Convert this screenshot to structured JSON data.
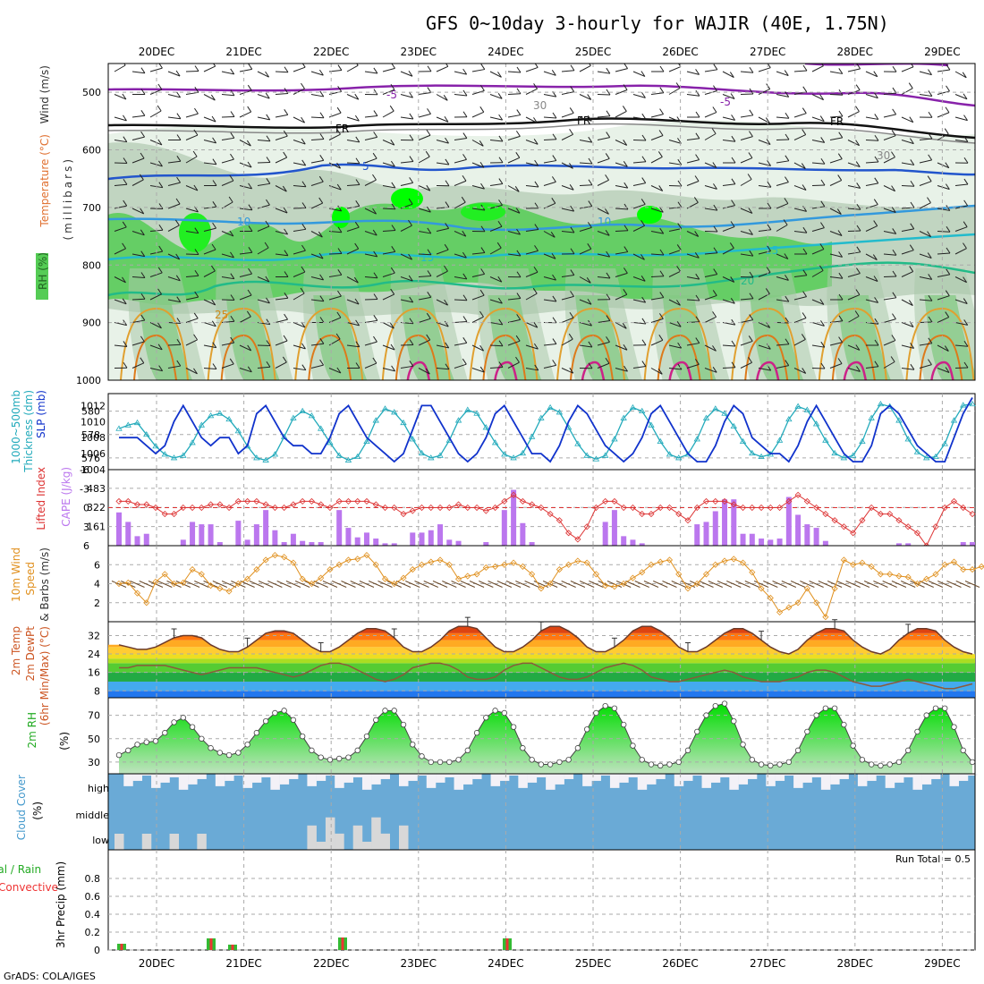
{
  "title": "GFS 0~10day 3-hourly for WAJIR (40E, 1.75N)",
  "footer": "GrADS: COLA/IGES",
  "run_total": "Run Total = 0.5",
  "dates": [
    "20DEC",
    "21DEC",
    "22DEC",
    "23DEC",
    "24DEC",
    "25DEC",
    "26DEC",
    "27DEC",
    "28DEC",
    "29DEC"
  ],
  "panel_labels": {
    "upper_wind": "Wind (m/s)",
    "upper_temp": "Temperature (°C)",
    "upper_mb": "(millibars)",
    "upper_rh": "RH (%)",
    "thick_1": "Thickness (dm)",
    "thick_2": "1000~500mb",
    "slp": "SLP (mb)",
    "li": "Lifted Index",
    "cape": "CAPE (J/kg)",
    "wind_1": "10m Wind",
    "wind_2": "Speed",
    "wind_3": "& Barbs (m/s)",
    "temp_1": "2m Temp",
    "temp_2": "2m DewPt",
    "temp_3": "(6hr Min/Max) (°C)",
    "rh": "2m RH",
    "rh_unit": "(%)",
    "cloud": "Cloud Cover",
    "cloud_unit": "(%)",
    "precip_1": "Total / Rain",
    "precip_2": "Convective",
    "precip_3": "3hr Precip (mm)"
  },
  "colors": {
    "rh_green": "#33dd33",
    "slp_line": "#1133cc",
    "thickness_line": "#22aabb",
    "cape_bar": "#bb77ee",
    "lifted_index": "#dd3333",
    "wind_speed": "#e0901e",
    "rh_fill": "#44bb44",
    "cloud_blue": "#6aaad6",
    "precip_green": "#33bb33",
    "precip_red": "#ee3333"
  },
  "chart_data": [
    {
      "panel": "upper-air cross section",
      "type": "heatmap",
      "y_axis": "pressure (millibars)",
      "y_ticks": [
        500,
        600,
        700,
        800,
        900,
        1000
      ],
      "contour_labels": [
        "-5",
        "FR",
        "5",
        "10",
        "15",
        "20",
        "25",
        "30"
      ],
      "x_ticks": [
        "20DEC",
        "21DEC",
        "22DEC",
        "23DEC",
        "24DEC",
        "25DEC",
        "26DEC",
        "27DEC",
        "28DEC",
        "29DEC"
      ]
    },
    {
      "panel": "thickness and sea level pressure",
      "type": "line",
      "y_left_ticks": [
        576,
        578,
        580
      ],
      "y_right_ticks": [
        1004,
        1006,
        1008,
        1010,
        1012
      ],
      "series": [
        {
          "name": "SLP (mb)",
          "values": [
            1008,
            1008,
            1008,
            1007,
            1006,
            1007,
            1010,
            1012,
            1010,
            1008,
            1007,
            1008,
            1008,
            1006,
            1007,
            1011,
            1012,
            1010,
            1008,
            1007,
            1007,
            1006,
            1006,
            1008,
            1011,
            1012,
            1010,
            1008,
            1007,
            1006,
            1005,
            1006,
            1009,
            1012,
            1012,
            1010,
            1008,
            1006,
            1005,
            1006,
            1008,
            1011,
            1012,
            1010,
            1008,
            1006,
            1006,
            1005,
            1007,
            1010,
            1012,
            1011,
            1009,
            1007,
            1006,
            1005,
            1006,
            1008,
            1011,
            1012,
            1010,
            1008,
            1006,
            1005,
            1005,
            1007,
            1010,
            1012,
            1011,
            1008,
            1007,
            1006,
            1006,
            1005,
            1007,
            1010,
            1012,
            1010,
            1008,
            1006,
            1005,
            1005,
            1007,
            1011,
            1012,
            1011,
            1009,
            1007,
            1006,
            1005,
            1005,
            1008,
            1011,
            1013
          ]
        },
        {
          "name": "Thickness (dm)",
          "values": [
            578.5,
            578.8,
            579.0,
            578.0,
            577.0,
            576.3,
            576.0,
            576.2,
            577.3,
            578.8,
            579.6,
            579.8,
            579.3,
            578.3,
            577.0,
            576.0,
            575.8,
            576.3,
            577.8,
            579.4,
            580.0,
            579.6,
            578.5,
            577.3,
            576.2,
            575.8,
            576.1,
            577.4,
            579.2,
            580.2,
            579.9,
            579.0,
            577.6,
            576.4,
            576.0,
            576.2,
            577.5,
            579.2,
            580.1,
            579.8,
            578.6,
            577.3,
            576.3,
            576.0,
            576.4,
            577.8,
            579.4,
            580.3,
            579.9,
            578.6,
            577.2,
            576.2,
            575.9,
            576.2,
            577.6,
            579.4,
            580.3,
            580.0,
            578.8,
            577.4,
            576.3,
            576.0,
            576.3,
            577.6,
            579.4,
            580.2,
            579.8,
            578.7,
            577.4,
            576.4,
            576.1,
            576.3,
            577.5,
            579.3,
            580.4,
            580.1,
            578.9,
            577.5,
            576.4,
            576.0,
            576.2,
            577.4,
            579.4,
            580.6,
            580.4,
            579.2,
            577.6,
            576.5,
            576.0,
            576.1,
            577.2,
            579.2,
            580.5,
            580.6
          ]
        }
      ]
    },
    {
      "panel": "lifted index and CAPE",
      "type": "bar",
      "y_left_ticks": [
        -6,
        -3,
        0,
        3,
        6
      ],
      "y_right_ticks": [
        161,
        322,
        483
      ],
      "cape_values": [
        280,
        200,
        80,
        100,
        0,
        0,
        0,
        50,
        200,
        180,
        180,
        30,
        0,
        210,
        50,
        180,
        300,
        130,
        30,
        100,
        40,
        30,
        30,
        0,
        300,
        150,
        70,
        110,
        60,
        20,
        20,
        0,
        110,
        110,
        130,
        180,
        50,
        40,
        0,
        0,
        30,
        0,
        300,
        470,
        190,
        30,
        0,
        0,
        0,
        0,
        0,
        0,
        0,
        200,
        300,
        80,
        50,
        20,
        0,
        0,
        0,
        0,
        0,
        180,
        200,
        290,
        390,
        390,
        100,
        100,
        60,
        50,
        60,
        410,
        260,
        180,
        150,
        40,
        0,
        0,
        0,
        0,
        0,
        0,
        0,
        20,
        20,
        0,
        0,
        0,
        0,
        0,
        30,
        30
      ],
      "lifted_index_values": [
        -1,
        -1,
        -0.5,
        -0.5,
        0,
        1,
        1,
        0,
        0,
        0,
        -0.5,
        -0.5,
        0,
        -1,
        -1,
        -1,
        -0.5,
        0,
        0,
        -0.5,
        -1,
        -1,
        -0.5,
        0,
        -1,
        -1,
        -1,
        -1,
        -0.5,
        0,
        0,
        1,
        0.5,
        0,
        0,
        0,
        0,
        -0.5,
        0,
        0,
        0.5,
        0,
        -1,
        -2,
        -1,
        -0.5,
        0,
        1,
        2,
        4,
        5,
        3,
        0,
        -1,
        -1,
        0,
        0,
        1,
        1,
        0,
        0,
        1,
        2,
        0,
        -1,
        -1,
        -1,
        -0.5,
        0,
        0,
        0,
        0,
        0,
        -1,
        -2,
        -1,
        0,
        1,
        2,
        3,
        4,
        2,
        0,
        1,
        1,
        2,
        3,
        4,
        6,
        3,
        0,
        -1,
        0,
        1
      ]
    },
    {
      "panel": "10m wind speed",
      "type": "line",
      "y_ticks": [
        2,
        4,
        6
      ],
      "series": [
        {
          "name": "Speed (m/s)",
          "values": [
            4.0,
            4.1,
            3.0,
            2.0,
            4.2,
            5.0,
            4.0,
            4.1,
            5.5,
            5.0,
            3.8,
            3.5,
            3.2,
            4.0,
            4.5,
            5.5,
            6.5,
            7.0,
            6.8,
            6.2,
            4.5,
            4.0,
            4.6,
            5.5,
            6.0,
            6.5,
            6.6,
            7.0,
            6.0,
            4.5,
            4.0,
            4.6,
            5.5,
            6.0,
            6.3,
            6.5,
            6.0,
            4.5,
            4.8,
            5.0,
            5.7,
            5.8,
            6.0,
            6.2,
            5.8,
            5.0,
            3.5,
            4.0,
            5.5,
            6.0,
            6.4,
            6.2,
            5.0,
            3.8,
            3.7,
            4.0,
            4.6,
            5.2,
            6.0,
            6.3,
            6.5,
            5.0,
            3.5,
            4.0,
            5.0,
            6.0,
            6.4,
            6.6,
            6.2,
            5.2,
            3.5,
            2.5,
            1.0,
            1.5,
            2.0,
            3.5,
            2.0,
            0.5,
            3.5,
            6.5,
            6.0,
            6.2,
            5.8,
            5.0,
            5.0,
            4.8,
            4.7,
            4.0,
            4.5,
            5.0,
            6.0,
            6.3,
            5.5,
            5.5,
            5.8,
            6.0,
            5.9,
            5.7
          ]
        }
      ]
    },
    {
      "panel": "2m temperature and dewpoint",
      "type": "area",
      "y_ticks": [
        8,
        16,
        24,
        32
      ],
      "series": [
        {
          "name": "2m Temp",
          "values": [
            28,
            27,
            26,
            26,
            27,
            29,
            31,
            32,
            32,
            31,
            28,
            26,
            25,
            25,
            27,
            30,
            33,
            34,
            34,
            33,
            30,
            27,
            25,
            25,
            27,
            30,
            33,
            35,
            35,
            34,
            31,
            27,
            25,
            25,
            27,
            30,
            34,
            36,
            36,
            35,
            31,
            27,
            25,
            25,
            27,
            30,
            34,
            36,
            36,
            34,
            31,
            27,
            25,
            25,
            27,
            30,
            34,
            36,
            36,
            34,
            31,
            27,
            25,
            25,
            27,
            30,
            33,
            35,
            35,
            33,
            30,
            27,
            25,
            24,
            26,
            30,
            33,
            35,
            35,
            34,
            30,
            27,
            25,
            24,
            26,
            30,
            33,
            35,
            35,
            34,
            30,
            27,
            25,
            24
          ]
        },
        {
          "name": "2m DewPt",
          "values": [
            18,
            18,
            19,
            19,
            19,
            19,
            18,
            17,
            16,
            15,
            16,
            17,
            18,
            18,
            18,
            18,
            17,
            16,
            15,
            14,
            15,
            17,
            19,
            20,
            20,
            19,
            17,
            15,
            13,
            12,
            13,
            15,
            18,
            19,
            20,
            20,
            19,
            17,
            14,
            13,
            13,
            14,
            17,
            19,
            20,
            20,
            18,
            16,
            14,
            13,
            13,
            14,
            16,
            18,
            19,
            20,
            19,
            17,
            14,
            13,
            12,
            12,
            13,
            14,
            15,
            16,
            17,
            16,
            14,
            13,
            12,
            12,
            12,
            13,
            14,
            16,
            17,
            17,
            16,
            14,
            12,
            11,
            10,
            10,
            11,
            12,
            13,
            12,
            11,
            10,
            9,
            9,
            10,
            11
          ]
        }
      ]
    },
    {
      "panel": "2m relative humidity",
      "type": "area",
      "y_ticks": [
        30,
        50,
        70
      ],
      "series": [
        {
          "name": "2m RH",
          "values": [
            36,
            40,
            45,
            47,
            48,
            55,
            64,
            68,
            60,
            50,
            42,
            38,
            36,
            38,
            45,
            55,
            65,
            72,
            74,
            66,
            52,
            40,
            34,
            32,
            33,
            34,
            40,
            52,
            66,
            74,
            74,
            62,
            45,
            35,
            30,
            30,
            30,
            32,
            40,
            55,
            68,
            74,
            72,
            60,
            42,
            32,
            28,
            28,
            30,
            32,
            42,
            58,
            72,
            78,
            76,
            62,
            44,
            32,
            28,
            27,
            28,
            30,
            40,
            56,
            70,
            78,
            80,
            65,
            45,
            32,
            28,
            27,
            28,
            30,
            40,
            56,
            70,
            76,
            76,
            62,
            44,
            32,
            28,
            27,
            28,
            30,
            40,
            56,
            70,
            76,
            76,
            60,
            40,
            30
          ]
        }
      ]
    },
    {
      "panel": "cloud cover",
      "type": "area",
      "y_ticks": [
        "high",
        "middle",
        "low"
      ]
    },
    {
      "panel": "3hr precipitation",
      "type": "bar",
      "y_ticks": [
        0,
        0.2,
        0.4,
        0.6,
        0.8
      ],
      "values": [
        {
          "date_index": 0,
          "value": 0.07
        },
        {
          "date_index": 1,
          "value": 0.13
        },
        {
          "date_index": 1,
          "value": 0.06
        },
        {
          "date_index": 2,
          "value": 0.14
        },
        {
          "date_index": 4,
          "value": 0.13
        }
      ]
    }
  ]
}
